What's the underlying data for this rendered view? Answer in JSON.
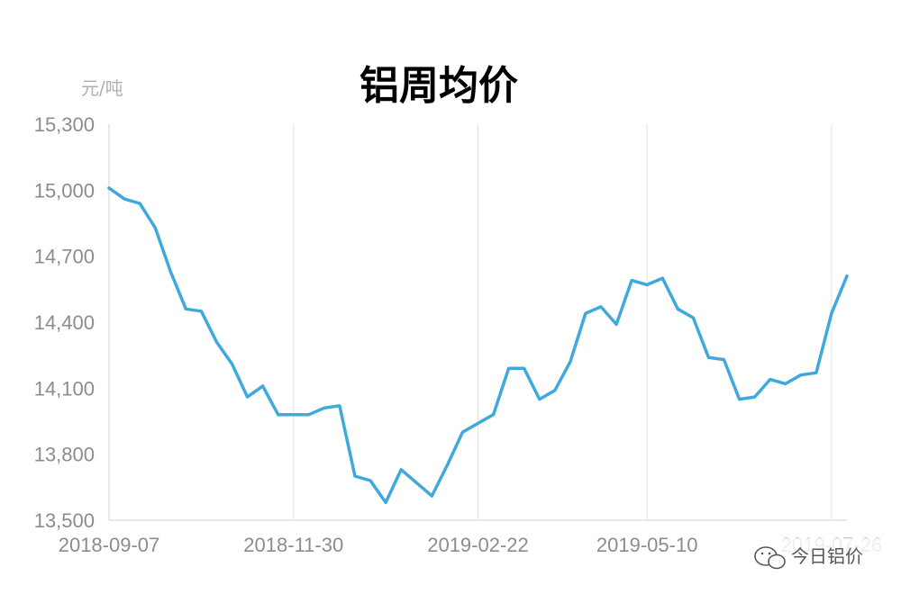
{
  "chart_data": {
    "type": "line",
    "title": "铝周均价",
    "ylabel": "元/吨",
    "xlabel": "",
    "ylim": [
      13500,
      15300
    ],
    "yticks": [
      "15,300",
      "15,000",
      "14,700",
      "14,400",
      "14,100",
      "13,800",
      "13,500"
    ],
    "ytick_values": [
      15300,
      15000,
      14700,
      14400,
      14100,
      13800,
      13500
    ],
    "xticks": [
      "2018-09-07",
      "2018-11-30",
      "2019-02-22",
      "2019-05-10",
      "2019-07-26"
    ],
    "xtick_index": [
      0,
      12,
      24,
      35,
      47
    ],
    "grid": "vertical",
    "series": [
      {
        "color": "#3fa9dc",
        "values": [
          15010,
          14960,
          14940,
          14830,
          14630,
          14460,
          14450,
          14310,
          14210,
          14060,
          14110,
          13980,
          13980,
          13980,
          14010,
          14020,
          13700,
          13680,
          13580,
          13730,
          13670,
          13610,
          13750,
          13900,
          13940,
          13980,
          14190,
          14190,
          14050,
          14090,
          14220,
          14440,
          14470,
          14390,
          14590,
          14570,
          14600,
          14460,
          14420,
          14240,
          14230,
          14050,
          14060,
          14140,
          14120,
          14160,
          14170,
          14440,
          14610
        ]
      }
    ]
  },
  "watermark": {
    "text": "今日铝价",
    "icon": "wechat-icon"
  }
}
